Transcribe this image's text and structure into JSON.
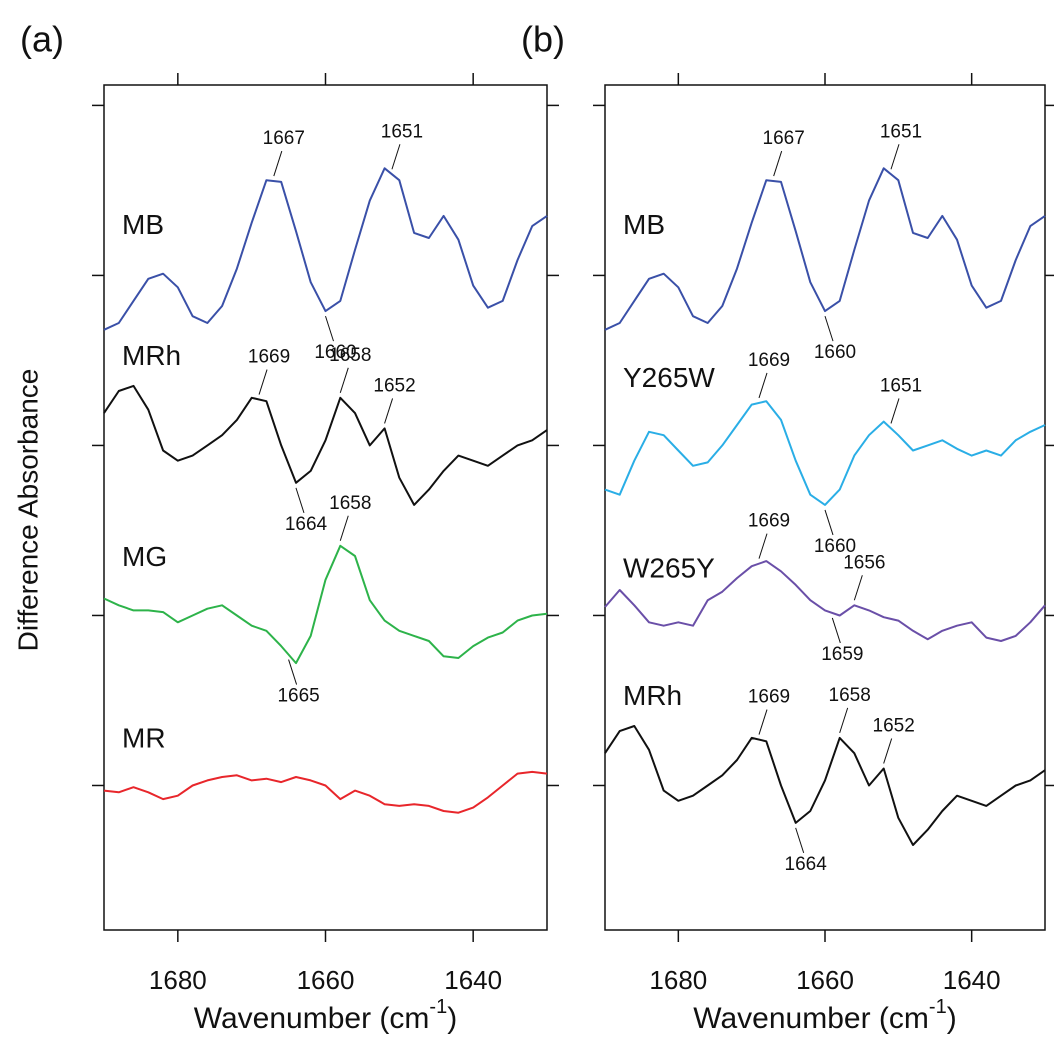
{
  "chart_data": [
    {
      "type": "line",
      "title": "(a)",
      "ylabel": "Difference Absorbance",
      "xlabel": [
        "Wavenumber (cm",
        "-1",
        ")"
      ],
      "x": [
        1690,
        1688,
        1686,
        1684,
        1682,
        1680,
        1678,
        1676,
        1674,
        1672,
        1670,
        1668,
        1666,
        1664,
        1662,
        1660,
        1658,
        1656,
        1654,
        1652,
        1650,
        1648,
        1646,
        1644,
        1642,
        1640,
        1638,
        1636,
        1634,
        1632,
        1630
      ],
      "xlim": [
        1690,
        1630
      ],
      "xticks": [
        1680,
        1660,
        1640
      ],
      "ylim": [
        -0.85,
        4.12
      ],
      "yticks": [
        0,
        1,
        2,
        3,
        4
      ],
      "series": [
        {
          "name": "MB",
          "color": "#3a50a8",
          "peaks": [
            1667,
            1651
          ],
          "troughs": [
            1660
          ],
          "values": [
            2.68,
            2.72,
            2.85,
            2.98,
            3.01,
            2.93,
            2.76,
            2.72,
            2.82,
            3.04,
            3.31,
            3.56,
            3.55,
            3.26,
            2.96,
            2.79,
            2.85,
            3.15,
            3.44,
            3.63,
            3.56,
            3.25,
            3.22,
            3.35,
            3.21,
            2.94,
            2.81,
            2.85,
            3.09,
            3.29,
            3.35
          ]
        },
        {
          "name": "MRh",
          "color": "#111111",
          "peaks": [
            1669,
            1658,
            1652
          ],
          "troughs": [
            1664
          ],
          "values": [
            2.19,
            2.32,
            2.35,
            2.21,
            1.97,
            1.91,
            1.94,
            2.0,
            2.06,
            2.15,
            2.28,
            2.26,
            2.0,
            1.78,
            1.85,
            2.03,
            2.28,
            2.19,
            2.0,
            2.1,
            1.81,
            1.65,
            1.74,
            1.85,
            1.94,
            1.91,
            1.88,
            1.94,
            2.0,
            2.03,
            2.09
          ]
        },
        {
          "name": "MG",
          "color": "#2db34a",
          "peaks": [
            1658
          ],
          "troughs": [
            1665
          ],
          "values": [
            1.1,
            1.06,
            1.03,
            1.03,
            1.02,
            0.96,
            1.0,
            1.04,
            1.06,
            1.0,
            0.94,
            0.91,
            0.82,
            0.72,
            0.88,
            1.21,
            1.41,
            1.35,
            1.09,
            0.97,
            0.91,
            0.88,
            0.85,
            0.76,
            0.75,
            0.82,
            0.87,
            0.9,
            0.97,
            1.0,
            1.01
          ]
        },
        {
          "name": "MR",
          "color": "#e8262b",
          "peaks": [],
          "troughs": [],
          "values": [
            -0.03,
            -0.04,
            -0.01,
            -0.04,
            -0.08,
            -0.06,
            0.0,
            0.03,
            0.05,
            0.06,
            0.03,
            0.04,
            0.02,
            0.05,
            0.03,
            0.0,
            -0.08,
            -0.03,
            -0.06,
            -0.11,
            -0.12,
            -0.11,
            -0.12,
            -0.15,
            -0.16,
            -0.13,
            -0.07,
            0.0,
            0.07,
            0.08,
            0.07
          ]
        }
      ]
    },
    {
      "type": "line",
      "title": "(b)",
      "xlabel": [
        "Wavenumber (cm",
        "-1",
        ")"
      ],
      "x": [
        1690,
        1688,
        1686,
        1684,
        1682,
        1680,
        1678,
        1676,
        1674,
        1672,
        1670,
        1668,
        1666,
        1664,
        1662,
        1660,
        1658,
        1656,
        1654,
        1652,
        1650,
        1648,
        1646,
        1644,
        1642,
        1640,
        1638,
        1636,
        1634,
        1632,
        1630
      ],
      "xlim": [
        1690,
        1630
      ],
      "xticks": [
        1680,
        1660,
        1640
      ],
      "ylim": [
        -0.85,
        4.12
      ],
      "yticks": [
        0,
        1,
        2,
        3,
        4
      ],
      "series": [
        {
          "name": "MB",
          "color": "#3a50a8",
          "peaks": [
            1667,
            1651
          ],
          "troughs": [
            1660
          ],
          "values": [
            2.68,
            2.72,
            2.85,
            2.98,
            3.01,
            2.93,
            2.76,
            2.72,
            2.82,
            3.04,
            3.31,
            3.56,
            3.55,
            3.26,
            2.96,
            2.79,
            2.85,
            3.15,
            3.44,
            3.63,
            3.56,
            3.25,
            3.22,
            3.35,
            3.21,
            2.94,
            2.81,
            2.85,
            3.09,
            3.29,
            3.35
          ]
        },
        {
          "name": "Y265W",
          "color": "#2aaee6",
          "peaks": [
            1669,
            1651
          ],
          "troughs": [
            1660
          ],
          "values": [
            1.74,
            1.71,
            1.91,
            2.08,
            2.06,
            1.97,
            1.88,
            1.9,
            2.0,
            2.12,
            2.24,
            2.26,
            2.15,
            1.91,
            1.71,
            1.65,
            1.74,
            1.94,
            2.06,
            2.14,
            2.06,
            1.97,
            2.0,
            2.03,
            1.98,
            1.94,
            1.97,
            1.94,
            2.03,
            2.08,
            2.12
          ]
        },
        {
          "name": "W265Y",
          "color": "#6a4fa8",
          "peaks": [
            1669,
            1656
          ],
          "troughs": [
            1659
          ],
          "values": [
            1.05,
            1.15,
            1.06,
            0.96,
            0.94,
            0.96,
            0.94,
            1.09,
            1.14,
            1.22,
            1.29,
            1.32,
            1.26,
            1.18,
            1.09,
            1.03,
            1.0,
            1.06,
            1.03,
            0.99,
            0.97,
            0.91,
            0.86,
            0.91,
            0.94,
            0.96,
            0.87,
            0.85,
            0.88,
            0.96,
            1.06
          ]
        },
        {
          "name": "MRh",
          "color": "#111111",
          "peaks": [
            1669,
            1658,
            1652
          ],
          "troughs": [
            1664
          ],
          "values": [
            0.19,
            0.32,
            0.35,
            0.21,
            -0.03,
            -0.09,
            -0.06,
            0.0,
            0.06,
            0.15,
            0.28,
            0.26,
            0.0,
            -0.22,
            -0.15,
            0.03,
            0.28,
            0.19,
            0.0,
            0.1,
            -0.19,
            -0.35,
            -0.26,
            -0.15,
            -0.06,
            -0.09,
            -0.12,
            -0.06,
            0.0,
            0.03,
            0.09
          ]
        }
      ]
    }
  ]
}
